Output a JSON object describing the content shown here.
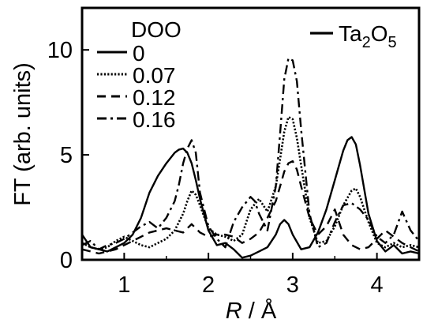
{
  "chart_data": {
    "type": "line",
    "xlabel": {
      "italic": "R",
      "rest": " / Å"
    },
    "ylabel": "FT (arb. units)",
    "xlim": [
      0.5,
      4.5
    ],
    "ylim": [
      0,
      12
    ],
    "xticks": [
      "1",
      "2",
      "3",
      "4"
    ],
    "xtick_values": [
      1,
      2,
      3,
      4
    ],
    "yticks": [
      "0",
      "5",
      "10"
    ],
    "ytick_values": [
      0,
      5,
      10
    ],
    "grid": false,
    "legend": {
      "title": "DOO",
      "placement": "top-left",
      "entries": [
        "0",
        "0.07",
        "0.12",
        "0.16"
      ]
    },
    "reference_legend": {
      "placement": "top-right",
      "base": "Ta",
      "sub1": "2",
      "mid": "O",
      "sub2": "5"
    },
    "series": [
      {
        "name": "0",
        "style": "solid",
        "x": [
          0.5,
          0.6,
          0.7,
          0.8,
          0.9,
          1.0,
          1.1,
          1.2,
          1.3,
          1.4,
          1.5,
          1.6,
          1.65,
          1.7,
          1.75,
          1.8,
          1.85,
          1.9,
          2.0,
          2.1,
          2.2,
          2.3,
          2.4,
          2.5,
          2.6,
          2.7,
          2.8,
          2.85,
          2.9,
          2.95,
          3.0,
          3.1,
          3.2,
          3.3,
          3.4,
          3.5,
          3.6,
          3.65,
          3.7,
          3.75,
          3.8,
          3.9,
          4.0,
          4.1,
          4.2,
          4.3,
          4.4,
          4.5
        ],
        "y": [
          1.2,
          0.6,
          0.5,
          0.4,
          0.6,
          0.8,
          1.2,
          2.0,
          3.2,
          4.0,
          4.6,
          5.1,
          5.25,
          5.3,
          5.1,
          4.6,
          3.8,
          2.9,
          1.4,
          0.7,
          0.8,
          0.5,
          0.1,
          0.2,
          0.4,
          0.6,
          1.2,
          1.7,
          1.9,
          1.7,
          1.2,
          0.5,
          0.6,
          1.3,
          2.4,
          3.8,
          5.2,
          5.7,
          5.85,
          5.5,
          4.5,
          2.2,
          0.9,
          0.4,
          0.7,
          0.3,
          0.4,
          0.3
        ]
      },
      {
        "name": "0.07",
        "style": "dotted",
        "x": [
          0.5,
          0.6,
          0.7,
          0.8,
          0.9,
          1.0,
          1.1,
          1.2,
          1.3,
          1.4,
          1.5,
          1.6,
          1.7,
          1.75,
          1.8,
          1.85,
          1.9,
          2.0,
          2.1,
          2.2,
          2.3,
          2.4,
          2.5,
          2.6,
          2.7,
          2.8,
          2.85,
          2.9,
          2.95,
          3.0,
          3.05,
          3.1,
          3.2,
          3.3,
          3.4,
          3.5,
          3.6,
          3.7,
          3.75,
          3.8,
          3.9,
          4.0,
          4.1,
          4.2,
          4.3,
          4.4,
          4.5
        ],
        "y": [
          0.8,
          0.6,
          0.5,
          0.6,
          0.9,
          1.1,
          0.9,
          0.7,
          0.6,
          0.8,
          1.0,
          1.4,
          2.2,
          2.8,
          3.3,
          3.1,
          2.6,
          1.5,
          1.2,
          1.1,
          0.9,
          1.2,
          2.4,
          2.9,
          2.3,
          3.5,
          4.8,
          6.1,
          6.8,
          6.7,
          5.8,
          4.5,
          2.0,
          0.8,
          0.9,
          1.6,
          2.6,
          3.3,
          3.4,
          3.0,
          1.8,
          0.8,
          0.6,
          0.8,
          0.6,
          0.7,
          0.6
        ]
      },
      {
        "name": "0.12",
        "style": "dashed",
        "x": [
          0.5,
          0.6,
          0.7,
          0.8,
          0.9,
          1.0,
          1.1,
          1.2,
          1.3,
          1.4,
          1.5,
          1.6,
          1.7,
          1.8,
          1.9,
          2.0,
          2.1,
          2.2,
          2.3,
          2.4,
          2.5,
          2.6,
          2.7,
          2.8,
          2.85,
          2.9,
          2.95,
          3.0,
          3.05,
          3.1,
          3.2,
          3.3,
          3.4,
          3.5,
          3.6,
          3.7,
          3.8,
          3.9,
          4.0,
          4.1,
          4.2,
          4.3,
          4.4,
          4.5
        ],
        "y": [
          0.5,
          0.4,
          0.3,
          0.4,
          0.5,
          0.7,
          0.9,
          1.1,
          1.3,
          1.4,
          1.5,
          1.4,
          1.3,
          1.7,
          1.3,
          1.1,
          1.2,
          1.2,
          1.1,
          0.8,
          1.0,
          1.3,
          2.0,
          2.8,
          3.5,
          4.2,
          4.6,
          4.7,
          4.3,
          3.5,
          2.0,
          1.2,
          1.6,
          2.4,
          1.2,
          0.7,
          0.5,
          0.6,
          1.0,
          1.4,
          1.1,
          0.8,
          0.6,
          0.4
        ]
      },
      {
        "name": "0.16",
        "style": "dashdot",
        "x": [
          0.5,
          0.6,
          0.7,
          0.8,
          0.9,
          1.0,
          1.1,
          1.2,
          1.3,
          1.4,
          1.5,
          1.6,
          1.65,
          1.7,
          1.75,
          1.8,
          1.85,
          1.9,
          2.0,
          2.1,
          2.2,
          2.3,
          2.4,
          2.5,
          2.55,
          2.6,
          2.7,
          2.8,
          2.85,
          2.9,
          2.95,
          3.0,
          3.05,
          3.1,
          3.2,
          3.3,
          3.4,
          3.5,
          3.6,
          3.7,
          3.8,
          3.9,
          4.0,
          4.1,
          4.2,
          4.3,
          4.4,
          4.5
        ],
        "y": [
          0.7,
          0.9,
          0.5,
          0.7,
          0.8,
          1.0,
          1.3,
          1.6,
          1.8,
          1.5,
          2.0,
          2.8,
          3.6,
          4.6,
          5.3,
          5.7,
          5.1,
          3.2,
          1.6,
          1.0,
          0.6,
          1.8,
          2.5,
          3.0,
          2.8,
          2.2,
          1.4,
          3.5,
          6.0,
          8.6,
          9.6,
          9.5,
          8.5,
          6.2,
          2.2,
          0.6,
          0.8,
          1.8,
          2.6,
          2.7,
          2.4,
          1.9,
          1.1,
          0.8,
          1.2,
          2.3,
          1.4,
          0.9
        ]
      }
    ]
  }
}
